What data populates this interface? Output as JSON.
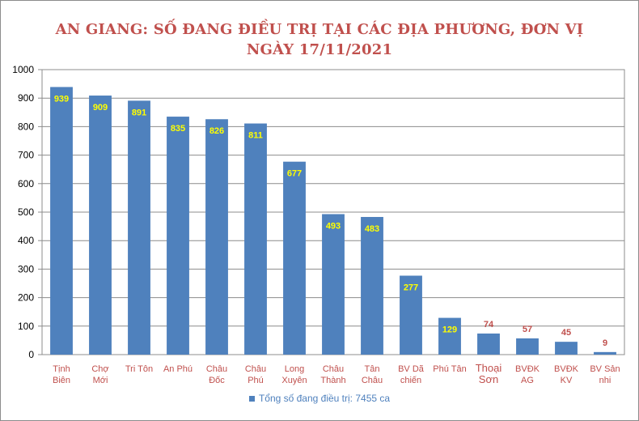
{
  "title_line1": "AN GIANG: SỐ ĐANG ĐIỀU  TRỊ TẠI CÁC ĐỊA PHƯƠNG, ĐƠN VỊ",
  "title_line2": "NGÀY 17/11/2021",
  "legend_label": "Tổng số  đang điều trị: 7455 ca",
  "colors": {
    "bar": "#4f81bd",
    "label_inside": "#ffff00",
    "label_outside": "#c0504d",
    "category_text": "#c0504d",
    "title": "#c0504d"
  },
  "chart_data": {
    "type": "bar",
    "title": "AN GIANG: SỐ ĐANG ĐIỀU  TRỊ TẠI CÁC ĐỊA PHƯƠNG, ĐƠN VỊ NGÀY 17/11/2021",
    "categories": [
      [
        "Tịnh",
        "Biên"
      ],
      [
        "Chợ",
        "Mới"
      ],
      [
        "Tri Tôn"
      ],
      [
        "An Phú"
      ],
      [
        "Châu",
        "Đốc"
      ],
      [
        "Châu",
        "Phú"
      ],
      [
        "Long",
        "Xuyên"
      ],
      [
        "Châu",
        "Thành"
      ],
      [
        "Tân",
        "Châu"
      ],
      [
        "BV Dã",
        "chiến"
      ],
      [
        "Phú Tân"
      ],
      [
        "Thoại",
        "Sơn"
      ],
      [
        "BVĐK",
        "AG"
      ],
      [
        "BVĐK",
        "KV"
      ],
      [
        "BV Sản",
        "nhi"
      ]
    ],
    "series": [
      {
        "name": "Tổng số  đang điều trị: 7455 ca",
        "values": [
          939,
          909,
          891,
          835,
          826,
          811,
          677,
          493,
          483,
          277,
          129,
          74,
          57,
          45,
          9
        ]
      }
    ],
    "ylim": [
      0,
      1000
    ],
    "yticks": [
      0,
      100,
      200,
      300,
      400,
      500,
      600,
      700,
      800,
      900,
      1000
    ],
    "grid": true,
    "legend_position": "bottom",
    "data_labels": true
  }
}
